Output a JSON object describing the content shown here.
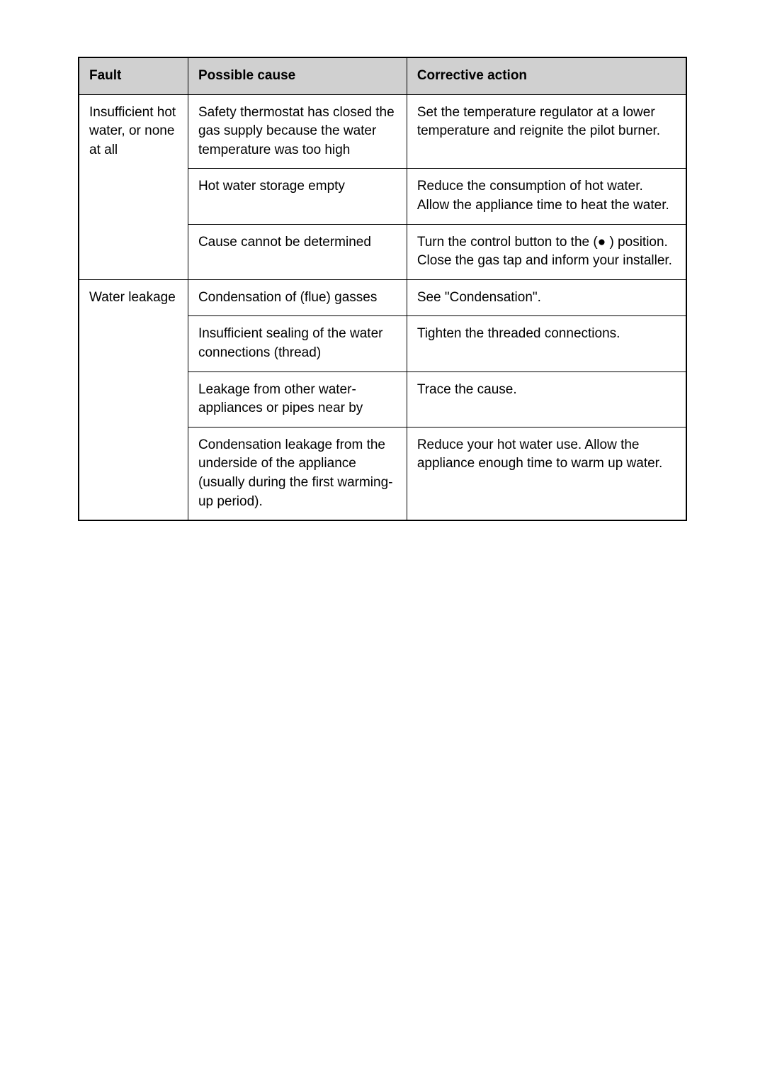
{
  "table": {
    "headers": {
      "fault": "Fault",
      "cause": "Possible cause",
      "action": "Corrective action"
    },
    "rows": [
      {
        "fault": "Insufficient hot water, or none at all",
        "fault_rowspan": 3,
        "cause": "Safety thermostat has closed the gas supply because the water temperature was too high",
        "action": "Set the temperature regulator at a lower temperature and reignite the pilot burner."
      },
      {
        "cause": "Hot water storage empty",
        "action": "Reduce the consumption of hot water. Allow the appliance time to heat the water."
      },
      {
        "cause": "Cause cannot be determined",
        "action": "Turn the control button to the (● ) position. Close the gas tap and inform your installer."
      },
      {
        "fault": "Water leakage",
        "fault_rowspan": 4,
        "cause": "Condensation of (flue) gasses",
        "action": "See \"Condensation\"."
      },
      {
        "cause": "Insufficient sealing of the water connections (thread)",
        "action": "Tighten the threaded connections."
      },
      {
        "cause": "Leakage from other water- appliances or pipes near by",
        "action": "Trace the cause."
      },
      {
        "cause": "Condensation leakage from the underside of the appliance (usually during the first warming-up period).",
        "action": "Reduce your hot water use. Allow the appliance enough time to warm up water."
      }
    ],
    "styling": {
      "border_color": "#000000",
      "header_bg": "#d0d0d0",
      "text_color": "#000000",
      "font_size": 19,
      "cell_padding": "12px 14px",
      "font_family": "Arial, Helvetica, sans-serif"
    }
  }
}
